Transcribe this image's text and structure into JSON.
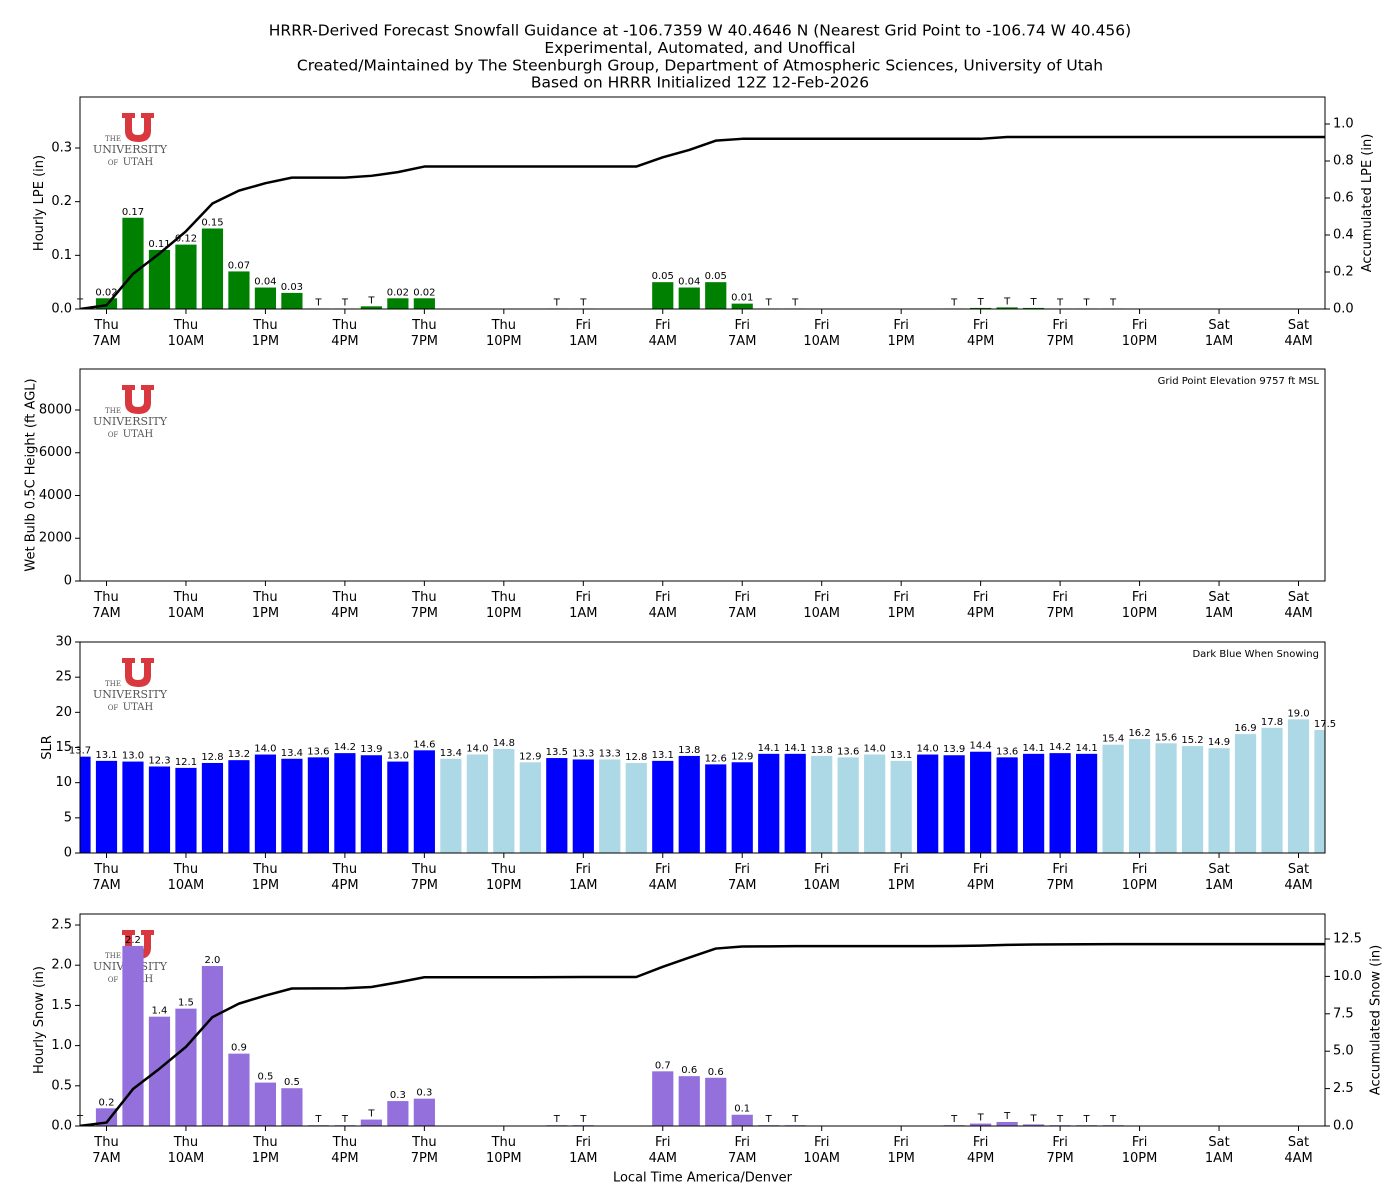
{
  "suptitle": [
    "HRRR-Derived Forecast Snowfall Guidance at -106.7359 W 40.4646 N (Nearest Grid Point to -106.74 W 40.456)",
    "Experimental, Automated, and Unoffical",
    "Created/Maintained by The Steenburgh Group, Department of Atmospheric Sciences, University of Utah",
    "Based on HRRR Initialized 12Z 12-Feb-2026"
  ],
  "logo": [
    "THE",
    "UNIVERSITY",
    "OF",
    "UTAH"
  ],
  "chart_data": [
    {
      "type": "bar",
      "ylabel": "Hourly LPE (in)",
      "y2label": "Accumulated LPE (in)",
      "categories": [
        null,
        [
          "Thu",
          "7AM"
        ],
        null,
        null,
        [
          "Thu",
          "10AM"
        ],
        null,
        null,
        [
          "Thu",
          "1PM"
        ],
        null,
        null,
        [
          "Thu",
          "4PM"
        ],
        null,
        null,
        [
          "Thu",
          "7PM"
        ],
        null,
        null,
        [
          "Thu",
          "10PM"
        ],
        null,
        null,
        [
          "Fri",
          "1AM"
        ],
        null,
        null,
        [
          "Fri",
          "4AM"
        ],
        null,
        null,
        [
          "Fri",
          "7AM"
        ],
        null,
        null,
        [
          "Fri",
          "10AM"
        ],
        null,
        null,
        [
          "Fri",
          "1PM"
        ],
        null,
        null,
        [
          "Fri",
          "4PM"
        ],
        null,
        null,
        [
          "Fri",
          "7PM"
        ],
        null,
        null,
        [
          "Fri",
          "10PM"
        ],
        null,
        null,
        [
          "Sat",
          "1AM"
        ],
        null,
        null,
        [
          "Sat",
          "4AM"
        ],
        null
      ],
      "ylim": [
        0,
        0.395
      ],
      "yticks": [
        {
          "value": 0,
          "label": "0.0"
        },
        0.1,
        0.2,
        0.3
      ],
      "y2lim": [
        0,
        1.146
      ],
      "y2ticks": [
        {
          "value": 0,
          "label": "0.0"
        },
        0.2,
        0.4,
        0.6,
        0.8,
        {
          "value": 1,
          "label": "1.0"
        }
      ],
      "series": [
        {
          "color": "#008000",
          "values": [
            0.001,
            0.02,
            0.17,
            0.11,
            0.12,
            0.15,
            0.07,
            0.04,
            0.03,
            0.001,
            0.001,
            0.005,
            0.02,
            0.02,
            0,
            0,
            0,
            0,
            0.001,
            0.001,
            0,
            0,
            0.05,
            0.04,
            0.05,
            0.01,
            0.001,
            0.001,
            0,
            0,
            0,
            0,
            0,
            0.001,
            0.002,
            0.003,
            0.002,
            0.001,
            0.001,
            0.001,
            0,
            0,
            0,
            0,
            0,
            0,
            0,
            0
          ],
          "value_labels": [
            "T",
            "0.02",
            "0.17",
            "0.11",
            "0.12",
            "0.15",
            "0.07",
            "0.04",
            "0.03",
            "T",
            "T",
            "T",
            "0.02",
            "0.02",
            null,
            null,
            null,
            null,
            "T",
            "T",
            null,
            null,
            "0.05",
            "0.04",
            "0.05",
            "0.01",
            "T",
            "T",
            null,
            null,
            null,
            null,
            null,
            "T",
            "T",
            "T",
            "T",
            "T",
            "T",
            "T",
            null,
            null,
            null,
            null,
            null,
            null,
            null,
            null
          ]
        },
        {
          "type": "line",
          "axis": "y2",
          "color": "#000000",
          "values": [
            0,
            0.02,
            0.19,
            0.3,
            0.42,
            0.57,
            0.64,
            0.68,
            0.71,
            0.71,
            0.71,
            0.72,
            0.74,
            0.77,
            0.77,
            0.77,
            0.77,
            0.77,
            0.77,
            0.77,
            0.77,
            0.77,
            0.82,
            0.86,
            0.91,
            0.92,
            0.92,
            0.92,
            0.92,
            0.92,
            0.92,
            0.92,
            0.92,
            0.92,
            0.92,
            0.93,
            0.93,
            0.93,
            0.93,
            0.93,
            0.93,
            0.93,
            0.93,
            0.93,
            0.93,
            0.93,
            0.93,
            0.93
          ]
        }
      ]
    },
    {
      "type": "bar",
      "ylabel": "Wet Bulb 0.5C Height (ft AGL)",
      "annotation": "Grid Point Elevation 9757 ft MSL",
      "categories": [
        null,
        [
          "Thu",
          "7AM"
        ],
        null,
        null,
        [
          "Thu",
          "10AM"
        ],
        null,
        null,
        [
          "Thu",
          "1PM"
        ],
        null,
        null,
        [
          "Thu",
          "4PM"
        ],
        null,
        null,
        [
          "Thu",
          "7PM"
        ],
        null,
        null,
        [
          "Thu",
          "10PM"
        ],
        null,
        null,
        [
          "Fri",
          "1AM"
        ],
        null,
        null,
        [
          "Fri",
          "4AM"
        ],
        null,
        null,
        [
          "Fri",
          "7AM"
        ],
        null,
        null,
        [
          "Fri",
          "10AM"
        ],
        null,
        null,
        [
          "Fri",
          "1PM"
        ],
        null,
        null,
        [
          "Fri",
          "4PM"
        ],
        null,
        null,
        [
          "Fri",
          "7PM"
        ],
        null,
        null,
        [
          "Fri",
          "10PM"
        ],
        null,
        null,
        [
          "Sat",
          "1AM"
        ],
        null,
        null,
        [
          "Sat",
          "4AM"
        ],
        null
      ],
      "ylim": [
        0,
        9918
      ],
      "yticks": [
        0,
        2000,
        4000,
        6000,
        8000
      ],
      "series": []
    },
    {
      "type": "bar",
      "ylabel": "SLR",
      "annotation": "Dark Blue When Snowing",
      "categories": [
        null,
        [
          "Thu",
          "7AM"
        ],
        null,
        null,
        [
          "Thu",
          "10AM"
        ],
        null,
        null,
        [
          "Thu",
          "1PM"
        ],
        null,
        null,
        [
          "Thu",
          "4PM"
        ],
        null,
        null,
        [
          "Thu",
          "7PM"
        ],
        null,
        null,
        [
          "Thu",
          "10PM"
        ],
        null,
        null,
        [
          "Fri",
          "1AM"
        ],
        null,
        null,
        [
          "Fri",
          "4AM"
        ],
        null,
        null,
        [
          "Fri",
          "7AM"
        ],
        null,
        null,
        [
          "Fri",
          "10AM"
        ],
        null,
        null,
        [
          "Fri",
          "1PM"
        ],
        null,
        null,
        [
          "Fri",
          "4PM"
        ],
        null,
        null,
        [
          "Fri",
          "7PM"
        ],
        null,
        null,
        [
          "Fri",
          "10PM"
        ],
        null,
        null,
        [
          "Sat",
          "1AM"
        ],
        null,
        null,
        [
          "Sat",
          "4AM"
        ],
        null
      ],
      "ylim": [
        0,
        30
      ],
      "yticks": [
        0,
        5,
        10,
        15,
        20,
        25,
        30
      ],
      "series": [
        {
          "values": [
            13.7,
            13.1,
            13.0,
            12.3,
            12.1,
            12.8,
            13.2,
            14.0,
            13.4,
            13.6,
            14.2,
            13.9,
            13.0,
            14.6,
            13.4,
            14.0,
            14.8,
            12.9,
            13.5,
            13.3,
            13.3,
            12.8,
            13.1,
            13.8,
            12.6,
            12.9,
            14.1,
            14.1,
            13.8,
            13.6,
            14.0,
            13.1,
            14.0,
            13.9,
            14.4,
            13.6,
            14.1,
            14.2,
            14.1,
            15.4,
            16.2,
            15.6,
            15.2,
            14.9,
            16.9,
            17.8,
            19.0,
            17.5
          ],
          "value_labels": [
            "13.7",
            "13.1",
            "13.0",
            "12.3",
            "12.1",
            "12.8",
            "13.2",
            "14.0",
            "13.4",
            "13.6",
            "14.2",
            "13.9",
            "13.0",
            "14.6",
            "13.4",
            "14.0",
            "14.8",
            "12.9",
            "13.5",
            "13.3",
            "13.3",
            "12.8",
            "13.1",
            "13.8",
            "12.6",
            "12.9",
            "14.1",
            "14.1",
            "13.8",
            "13.6",
            "14.0",
            "13.1",
            "14.0",
            "13.9",
            "14.4",
            "13.6",
            "14.1",
            "14.2",
            "14.1",
            "15.4",
            "16.2",
            "15.6",
            "15.2",
            "14.9",
            "16.9",
            "17.8",
            "19.0",
            "17.5"
          ],
          "colors": [
            "#0000ff",
            "#0000ff",
            "#0000ff",
            "#0000ff",
            "#0000ff",
            "#0000ff",
            "#0000ff",
            "#0000ff",
            "#0000ff",
            "#0000ff",
            "#0000ff",
            "#0000ff",
            "#0000ff",
            "#0000ff",
            "#add8e6",
            "#add8e6",
            "#add8e6",
            "#add8e6",
            "#0000ff",
            "#0000ff",
            "#add8e6",
            "#add8e6",
            "#0000ff",
            "#0000ff",
            "#0000ff",
            "#0000ff",
            "#0000ff",
            "#0000ff",
            "#add8e6",
            "#add8e6",
            "#add8e6",
            "#add8e6",
            "#0000ff",
            "#0000ff",
            "#0000ff",
            "#0000ff",
            "#0000ff",
            "#0000ff",
            "#0000ff",
            "#add8e6",
            "#add8e6",
            "#add8e6",
            "#add8e6",
            "#add8e6",
            "#add8e6",
            "#add8e6",
            "#add8e6",
            "#add8e6"
          ]
        }
      ]
    },
    {
      "type": "bar",
      "ylabel": "Hourly Snow (in)",
      "y2label": "Accumulated Snow (in)",
      "xlabel": "Local Time America/Denver",
      "categories": [
        null,
        [
          "Thu",
          "7AM"
        ],
        null,
        null,
        [
          "Thu",
          "10AM"
        ],
        null,
        null,
        [
          "Thu",
          "1PM"
        ],
        null,
        null,
        [
          "Thu",
          "4PM"
        ],
        null,
        null,
        [
          "Thu",
          "7PM"
        ],
        null,
        null,
        [
          "Thu",
          "10PM"
        ],
        null,
        null,
        [
          "Fri",
          "1AM"
        ],
        null,
        null,
        [
          "Fri",
          "4AM"
        ],
        null,
        null,
        [
          "Fri",
          "7AM"
        ],
        null,
        null,
        [
          "Fri",
          "10AM"
        ],
        null,
        null,
        [
          "Fri",
          "1PM"
        ],
        null,
        null,
        [
          "Fri",
          "4PM"
        ],
        null,
        null,
        [
          "Fri",
          "7PM"
        ],
        null,
        null,
        [
          "Fri",
          "10PM"
        ],
        null,
        null,
        [
          "Sat",
          "1AM"
        ],
        null,
        null,
        [
          "Sat",
          "4AM"
        ],
        null
      ],
      "ylim": [
        0,
        2.637
      ],
      "yticks": [
        {
          "value": 0,
          "label": "0.0"
        },
        0.5,
        {
          "value": 1,
          "label": "1.0"
        },
        1.5,
        {
          "value": 2,
          "label": "2.0"
        },
        2.5
      ],
      "y2lim": [
        0,
        14.17
      ],
      "y2ticks": [
        {
          "value": 0,
          "label": "0.0"
        },
        2.5,
        {
          "value": 5,
          "label": "5.0"
        },
        7.5,
        {
          "value": 10,
          "label": "10.0"
        },
        12.5
      ],
      "series": [
        {
          "color": "#9370db",
          "values": [
            0.01,
            0.22,
            2.24,
            1.36,
            1.46,
            1.99,
            0.9,
            0.54,
            0.47,
            0.01,
            0.01,
            0.08,
            0.31,
            0.34,
            0,
            0,
            0,
            0,
            0.01,
            0.01,
            0,
            0,
            0.68,
            0.62,
            0.6,
            0.14,
            0.01,
            0.01,
            0,
            0,
            0,
            0,
            0,
            0.01,
            0.03,
            0.05,
            0.02,
            0.01,
            0.01,
            0.01,
            0,
            0,
            0,
            0,
            0,
            0,
            0,
            0
          ],
          "value_labels": [
            "T",
            "0.2",
            "2.2",
            "1.4",
            "1.5",
            "2.0",
            "0.9",
            "0.5",
            "0.5",
            "T",
            "T",
            "T",
            "0.3",
            "0.3",
            null,
            null,
            null,
            null,
            "T",
            "T",
            null,
            null,
            "0.7",
            "0.6",
            "0.6",
            "0.1",
            "T",
            "T",
            null,
            null,
            null,
            null,
            null,
            "T",
            "T",
            "T",
            "T",
            "T",
            "T",
            "T",
            null,
            null,
            null,
            null,
            null,
            null,
            null,
            null
          ]
        },
        {
          "type": "line",
          "axis": "y2",
          "color": "#000000",
          "values": [
            0.01,
            0.23,
            2.47,
            3.83,
            5.29,
            7.28,
            8.18,
            8.72,
            9.19,
            9.2,
            9.21,
            9.29,
            9.6,
            9.94,
            9.94,
            9.94,
            9.94,
            9.94,
            9.95,
            9.96,
            9.96,
            9.96,
            10.64,
            11.26,
            11.86,
            12.0,
            12.01,
            12.02,
            12.02,
            12.02,
            12.02,
            12.02,
            12.02,
            12.03,
            12.06,
            12.11,
            12.13,
            12.14,
            12.15,
            12.16,
            12.16,
            12.16,
            12.16,
            12.16,
            12.16,
            12.16,
            12.16,
            12.16
          ]
        }
      ]
    }
  ]
}
